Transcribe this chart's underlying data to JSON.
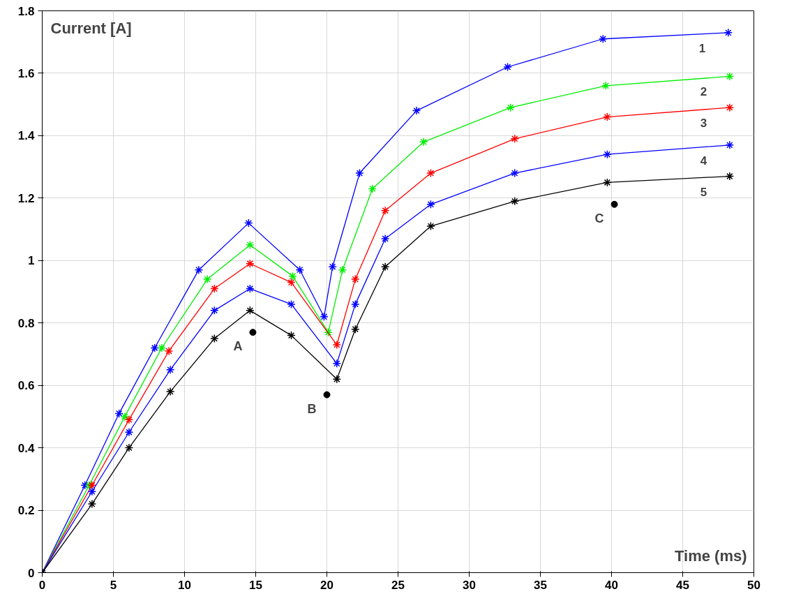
{
  "chart_data": {
    "type": "line",
    "xlabel": "Time (ms)",
    "ylabel": "Current [A]",
    "xlim": [
      0,
      50
    ],
    "ylim": [
      0,
      1.8
    ],
    "xticks": [
      0,
      5,
      10,
      15,
      20,
      25,
      30,
      35,
      40,
      45,
      50
    ],
    "yticks": [
      0,
      0.2,
      0.4,
      0.6,
      0.8,
      1,
      1.2,
      1.4,
      1.6,
      1.8
    ],
    "grid": true,
    "marker": "cross",
    "line_style": "solid",
    "series": [
      {
        "name": "1",
        "color": "#0000ff",
        "x": [
          0,
          3.0,
          5.4,
          7.9,
          11.0,
          14.5,
          18.1,
          19.8,
          20.4,
          22.3,
          26.3,
          32.7,
          39.4,
          48.2
        ],
        "values": [
          0,
          0.28,
          0.51,
          0.72,
          0.97,
          1.12,
          0.97,
          0.82,
          0.98,
          1.28,
          1.48,
          1.62,
          1.71,
          1.73
        ]
      },
      {
        "name": "2",
        "color": "#00ee00",
        "x": [
          0,
          3.3,
          5.8,
          8.4,
          11.6,
          14.6,
          17.6,
          20.1,
          21.1,
          23.2,
          26.8,
          32.9,
          39.6,
          48.3
        ],
        "values": [
          0,
          0.28,
          0.5,
          0.72,
          0.94,
          1.05,
          0.95,
          0.77,
          0.97,
          1.23,
          1.38,
          1.49,
          1.56,
          1.59
        ]
      },
      {
        "name": "3",
        "color": "#ff0000",
        "x": [
          0,
          3.5,
          6.1,
          8.9,
          12.1,
          14.6,
          17.5,
          20.7,
          22.0,
          24.1,
          27.3,
          33.2,
          39.7,
          48.3
        ],
        "values": [
          0,
          0.28,
          0.49,
          0.71,
          0.91,
          0.99,
          0.93,
          0.73,
          0.94,
          1.16,
          1.28,
          1.39,
          1.46,
          1.49
        ]
      },
      {
        "name": "4",
        "color": "#0000ff",
        "x": [
          0,
          3.5,
          6.1,
          9.0,
          12.1,
          14.6,
          17.5,
          20.7,
          22.0,
          24.1,
          27.3,
          33.2,
          39.7,
          48.3
        ],
        "values": [
          0,
          0.26,
          0.45,
          0.65,
          0.84,
          0.91,
          0.86,
          0.67,
          0.86,
          1.07,
          1.18,
          1.28,
          1.34,
          1.37
        ]
      },
      {
        "name": "5",
        "color": "#000000",
        "x": [
          0,
          3.5,
          6.1,
          9.0,
          12.1,
          14.6,
          17.5,
          20.7,
          22.0,
          24.1,
          27.3,
          33.2,
          39.7,
          48.3
        ],
        "values": [
          0,
          0.22,
          0.4,
          0.58,
          0.75,
          0.84,
          0.76,
          0.62,
          0.78,
          0.98,
          1.11,
          1.19,
          1.25,
          1.27
        ]
      }
    ],
    "annotations": [
      {
        "text": "A",
        "x": 14.8,
        "y": 0.77
      },
      {
        "text": "B",
        "x": 20.0,
        "y": 0.57
      },
      {
        "text": "C",
        "x": 40.2,
        "y": 1.18
      }
    ]
  }
}
